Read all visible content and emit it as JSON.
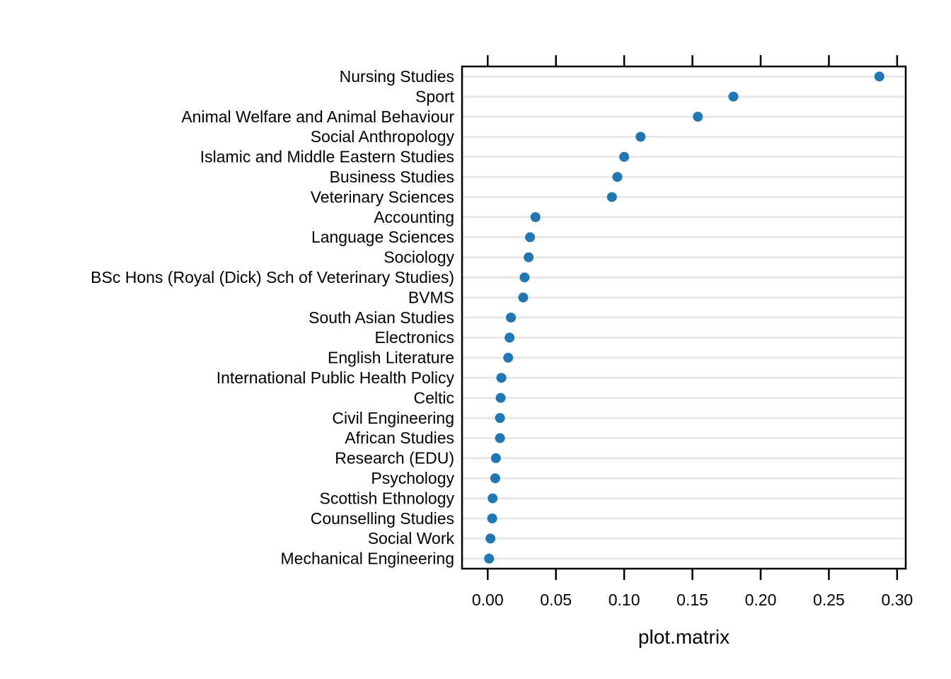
{
  "chart_data": {
    "type": "scatter",
    "subtype": "cleveland-dot-plot",
    "title": "",
    "xlabel": "plot.matrix",
    "ylabel": "",
    "legend": "none",
    "grid": "horizontal-major-only",
    "panel_border": true,
    "ticks": "top-and-bottom-outside",
    "categories": [
      "Nursing Studies",
      "Sport",
      "Animal Welfare and Animal Behaviour",
      "Social Anthropology",
      "Islamic and Middle Eastern Studies",
      "Business Studies",
      "Veterinary Sciences",
      "Accounting",
      "Language Sciences",
      "Sociology",
      "BSc Hons (Royal (Dick) Sch of Veterinary Studies)",
      "BVMS",
      "South Asian Studies",
      "Electronics",
      "English Literature",
      "International Public Health Policy",
      "Celtic",
      "Civil Engineering",
      "African Studies",
      "Research (EDU)",
      "Psychology",
      "Scottish Ethnology",
      "Counselling Studies",
      "Social Work",
      "Mechanical Engineering"
    ],
    "values": [
      0.287,
      0.18,
      0.154,
      0.112,
      0.1,
      0.095,
      0.091,
      0.035,
      0.031,
      0.03,
      0.027,
      0.026,
      0.017,
      0.016,
      0.015,
      0.01,
      0.0095,
      0.009,
      0.009,
      0.006,
      0.0055,
      0.0036,
      0.0033,
      0.002,
      0.001
    ],
    "x_tick_labels": [
      "0.00",
      "0.05",
      "0.10",
      "0.15",
      "0.20",
      "0.25",
      "0.30"
    ],
    "x_tick_values": [
      0.0,
      0.05,
      0.1,
      0.15,
      0.2,
      0.25,
      0.3
    ],
    "xlim": [
      -0.0188,
      0.3063
    ],
    "colors": {
      "dot": "#1F77B4",
      "gridline": "#E6E6E6",
      "axis": "#000000",
      "text": "#000000",
      "background": "#FFFFFF"
    }
  }
}
